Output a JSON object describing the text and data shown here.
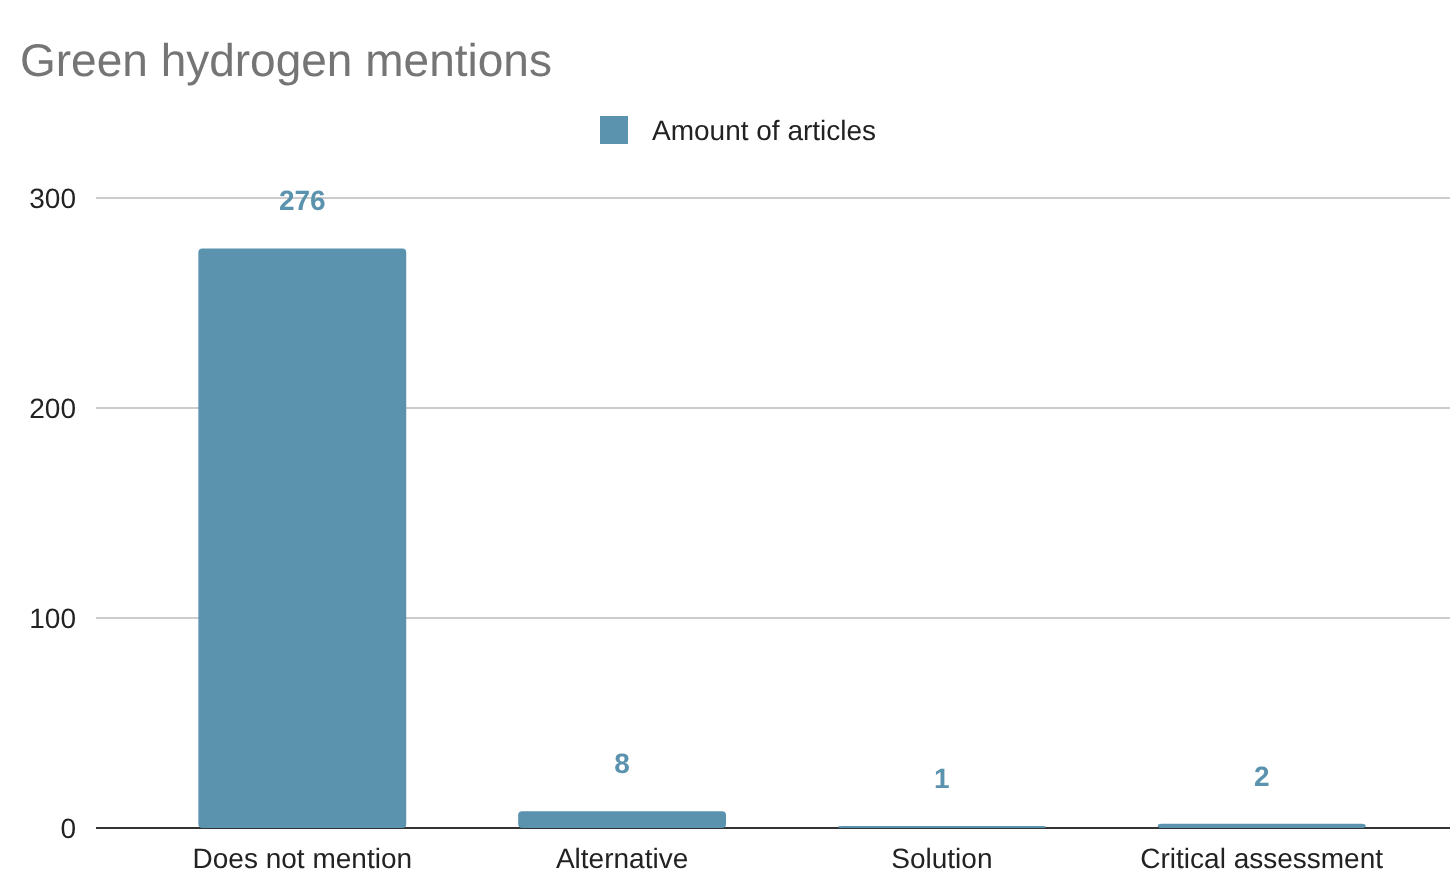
{
  "chart_data": {
    "type": "bar",
    "title": "Green hydrogen mentions",
    "categories": [
      "Does not mention",
      "Alternative",
      "Solution",
      "Critical assessment"
    ],
    "series": [
      {
        "name": "Amount of articles",
        "color": "#5b93ae",
        "values": [
          276,
          8,
          1,
          2
        ]
      }
    ],
    "ylim": [
      0,
      300
    ],
    "yticks": [
      0,
      100,
      200,
      300
    ],
    "grid": "y",
    "legend": "top",
    "data_labels": true
  }
}
